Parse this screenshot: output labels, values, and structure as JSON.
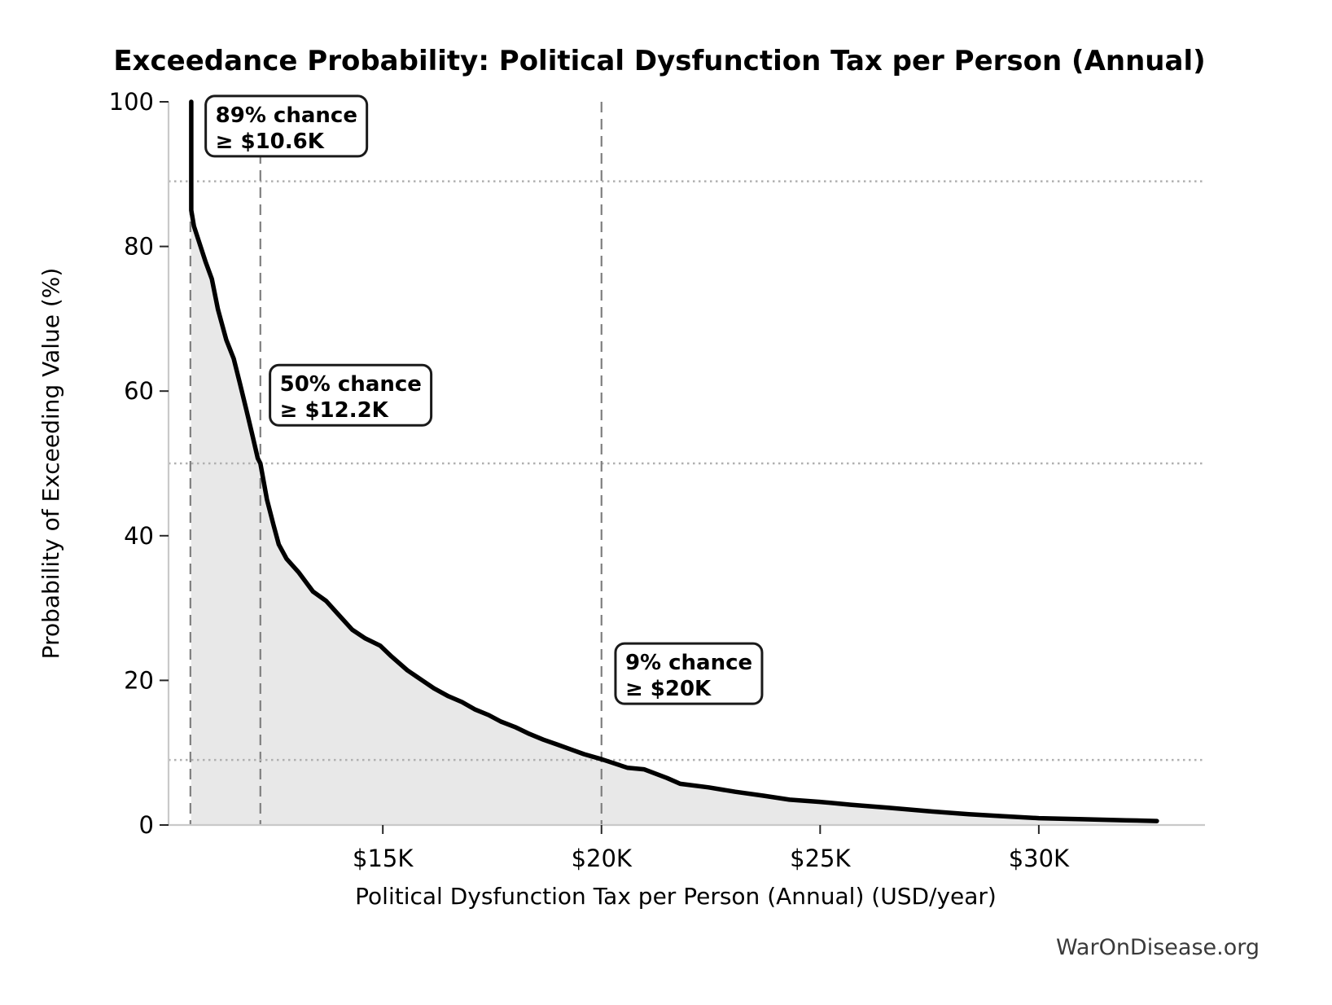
{
  "chart_data": {
    "type": "line",
    "title": "Exceedance Probability: Political Dysfunction Tax per Person (Annual)",
    "xlabel": "Political Dysfunction Tax per Person (Annual) (USD/year)",
    "ylabel": "Probability of Exceeding Value (%)",
    "watermark": "WarOnDisease.org",
    "xlim_k_usd": [
      10.1,
      33.8
    ],
    "ylim_pct": [
      0,
      100
    ],
    "grid": "guide lines only (dotted horizontal at annotation probabilities, dashed vertical at annotation values)",
    "x_ticks": [
      {
        "value_k": 15,
        "label": "$15K"
      },
      {
        "value_k": 20,
        "label": "$20K"
      },
      {
        "value_k": 25,
        "label": "$25K"
      },
      {
        "value_k": 30,
        "label": "$30K"
      }
    ],
    "y_ticks": [
      {
        "value_pct": 0,
        "label": "0"
      },
      {
        "value_pct": 20,
        "label": "20"
      },
      {
        "value_pct": 40,
        "label": "40"
      },
      {
        "value_pct": 60,
        "label": "60"
      },
      {
        "value_pct": 80,
        "label": "80"
      },
      {
        "value_pct": 100,
        "label": "100"
      }
    ],
    "series": [
      {
        "name": "exceedance-curve",
        "x_k_usd": [
          10.62,
          10.62,
          10.68,
          10.8,
          10.95,
          11.09,
          11.23,
          11.42,
          11.59,
          11.73,
          11.88,
          12.01,
          12.14,
          12.2,
          12.35,
          12.5,
          12.62,
          12.8,
          13.08,
          13.4,
          13.7,
          14.0,
          14.3,
          14.6,
          14.94,
          15.2,
          15.56,
          15.9,
          16.17,
          16.5,
          16.81,
          17.1,
          17.42,
          17.7,
          18.04,
          18.35,
          18.67,
          19.0,
          19.28,
          19.6,
          20.0,
          20.6,
          20.97,
          21.5,
          21.8,
          22.45,
          23.06,
          23.7,
          24.3,
          25.0,
          25.7,
          26.55,
          27.5,
          28.4,
          29.2,
          30.0,
          31.0,
          32.0,
          32.7
        ],
        "y_pct": [
          100,
          85,
          82.8,
          80.6,
          77.8,
          75.5,
          71.3,
          67.1,
          64.5,
          61.1,
          57.4,
          54.1,
          50.7,
          50,
          45,
          41.5,
          38.8,
          36.8,
          34.9,
          32.3,
          31,
          29,
          27,
          25.8,
          24.8,
          23.3,
          21.4,
          20,
          18.9,
          17.8,
          17,
          16,
          15.2,
          14.3,
          13.5,
          12.6,
          11.8,
          11.1,
          10.5,
          9.8,
          9.1,
          7.9,
          7.7,
          6.5,
          5.7,
          5.2,
          4.6,
          4.05,
          3.5,
          3.2,
          2.8,
          2.4,
          1.9,
          1.5,
          1.2,
          0.95,
          0.8,
          0.65,
          0.55
        ]
      }
    ],
    "annotations": [
      {
        "line1": "89% chance",
        "line2": "≥ $10.6K",
        "probability_pct": 89,
        "value_k": 10.6,
        "box_x_k": 10.95,
        "box_top_pct": 100.8
      },
      {
        "line1": "50% chance",
        "line2": "≥ $12.2K",
        "probability_pct": 50,
        "value_k": 12.2,
        "box_x_k": 12.42,
        "box_top_pct": 63.6
      },
      {
        "line1": "9% chance",
        "line2": "≥ $20K",
        "probability_pct": 9,
        "value_k": 20.0,
        "box_x_k": 20.32,
        "box_top_pct": 25.1
      }
    ],
    "legend": "none"
  },
  "colors": {
    "curve": "#000000",
    "area_fill": "#e8e8e8",
    "dashed_guide": "#7f7f7f",
    "dotted_guide": "#b0b0b0",
    "spine": "#c9c9c9",
    "tick": "#262626",
    "annotation_border": "#1a1a1a",
    "annotation_bg": "#ffffff",
    "watermark": "#3a3a3a"
  }
}
